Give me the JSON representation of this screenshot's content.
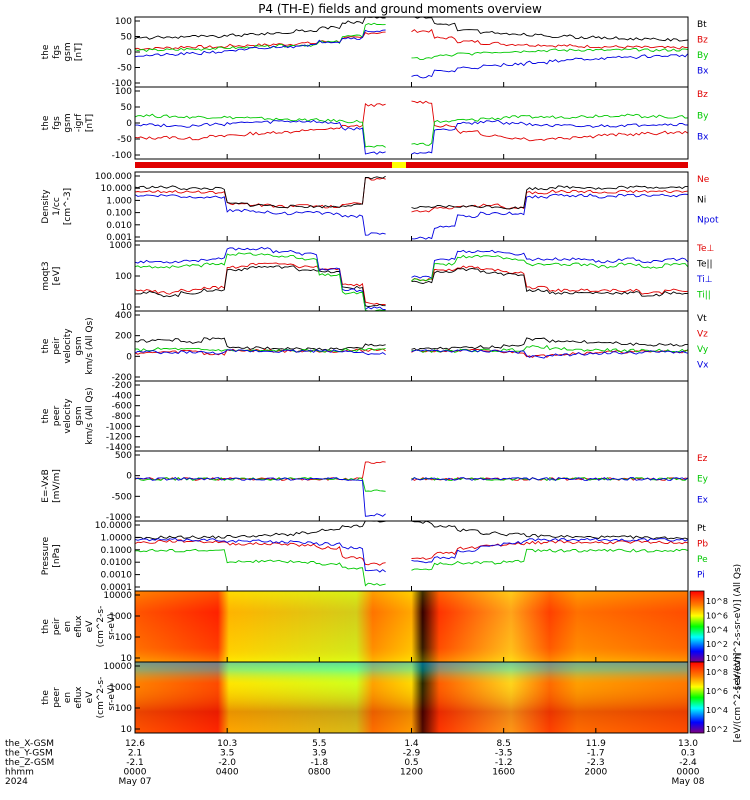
{
  "title": "P4 (TH-E) fields and ground moments overview",
  "colors": {
    "black": "#000000",
    "red": "#e00000",
    "green": "#00c800",
    "blue": "#0000e0",
    "yellow": "#ffff00",
    "frame": "#000000"
  },
  "chart_data": [
    {
      "type": "line",
      "id": "p1",
      "ylabel": [
        "the",
        "fgs",
        "gsm",
        "[nT]"
      ],
      "yticks": [
        "100",
        "50",
        "0",
        "-50",
        "-100"
      ],
      "ylim": [
        -100,
        100
      ],
      "series": [
        {
          "name": "Bt",
          "color": "#000000",
          "values": [
            40,
            42,
            45,
            44,
            48,
            52,
            55,
            60,
            70,
            85,
            100,
            0,
            100,
            80,
            62,
            55,
            50,
            48,
            45,
            42,
            40,
            38,
            36,
            35,
            34
          ]
        },
        {
          "name": "Bz",
          "color": "#e00000",
          "values": [
            10,
            12,
            15,
            14,
            18,
            20,
            22,
            25,
            30,
            40,
            55,
            0,
            60,
            40,
            30,
            25,
            22,
            20,
            18,
            16,
            15,
            14,
            13,
            12,
            12
          ]
        },
        {
          "name": "By",
          "color": "#00c800",
          "values": [
            5,
            6,
            8,
            10,
            12,
            15,
            18,
            20,
            28,
            45,
            80,
            0,
            -20,
            -10,
            -5,
            0,
            2,
            4,
            5,
            6,
            5,
            6,
            5,
            6,
            5
          ]
        },
        {
          "name": "Bx",
          "color": "#0000e0",
          "values": [
            -10,
            -8,
            -5,
            0,
            5,
            10,
            15,
            20,
            30,
            40,
            60,
            0,
            -70,
            -55,
            -45,
            -40,
            -35,
            -30,
            -25,
            -20,
            -18,
            -15,
            -12,
            -10,
            -8
          ]
        }
      ]
    },
    {
      "type": "line",
      "id": "p2",
      "ylabel": [
        "the",
        "fgs",
        "gsm",
        "-igrf",
        "[nT]"
      ],
      "yticks": [
        "100",
        "50",
        "0",
        "-50",
        "-100"
      ],
      "ylim": [
        -120,
        120
      ],
      "series": [
        {
          "name": "Bz",
          "color": "#e00000",
          "values": [
            -50,
            -48,
            -52,
            -45,
            -40,
            -35,
            -30,
            -25,
            -20,
            -10,
            60,
            0,
            70,
            -10,
            -30,
            -40,
            -50,
            -55,
            -50,
            -45,
            -40,
            -38,
            -35,
            -32,
            -30
          ]
        },
        {
          "name": "By",
          "color": "#00c800",
          "values": [
            25,
            22,
            20,
            20,
            18,
            15,
            12,
            10,
            8,
            5,
            -80,
            0,
            -70,
            5,
            10,
            15,
            20,
            20,
            20,
            22,
            25,
            25,
            22,
            20,
            20
          ]
        },
        {
          "name": "Bx",
          "color": "#0000e0",
          "values": [
            -5,
            -8,
            -10,
            -5,
            0,
            2,
            5,
            5,
            0,
            -20,
            -100,
            0,
            -100,
            -20,
            0,
            5,
            0,
            -5,
            -10,
            -12,
            -10,
            -8,
            -5,
            -5,
            -5
          ]
        }
      ]
    },
    {
      "type": "line",
      "id": "p3",
      "ylabel": [
        "Density",
        "1/cc",
        "[cm^-3]"
      ],
      "yticks": [
        "100.000",
        "10.000",
        "1.000",
        "0.100",
        "0.010",
        "0.001"
      ],
      "ylim": [
        -3,
        2
      ],
      "log": true,
      "series": [
        {
          "name": "Ne",
          "color": "#e00000",
          "values": [
            0.6,
            0.6,
            0.55,
            0.5,
            -0.3,
            -0.4,
            -0.5,
            -0.4,
            -0.5,
            -0.3,
            1.5,
            0,
            -0.8,
            -0.6,
            -0.5,
            -0.4,
            -0.6,
            0.5,
            0.6,
            0.6,
            0.5,
            0.6,
            0.6,
            0.6,
            0.6
          ]
        },
        {
          "name": "Ni",
          "color": "#000000",
          "values": [
            0.9,
            0.9,
            0.8,
            0.8,
            -0.3,
            -0.4,
            -0.5,
            -0.5,
            -0.5,
            -0.4,
            1.6,
            0,
            -0.6,
            -0.5,
            -0.5,
            -0.5,
            -0.6,
            0.8,
            0.9,
            0.9,
            0.8,
            0.9,
            0.9,
            0.9,
            0.9
          ]
        },
        {
          "name": "Npot",
          "color": "#0000e0",
          "values": [
            0.3,
            0.3,
            0.2,
            0.2,
            -0.8,
            -0.9,
            -1.0,
            -0.9,
            -1.0,
            -1.2,
            -2.5,
            0,
            -2.8,
            -2.0,
            -1.2,
            -1.0,
            -1.0,
            0.2,
            0.3,
            0.3,
            0.2,
            0.3,
            0.3,
            0.3,
            0.3
          ]
        }
      ]
    },
    {
      "type": "line",
      "id": "p4",
      "ylabel": [
        "moqt3",
        "[eV]"
      ],
      "yticks": [
        "1000",
        "100",
        "10"
      ],
      "ylim": [
        1,
        3.7
      ],
      "log": true,
      "series": [
        {
          "name": "Te⊥",
          "color": "#e00000",
          "values": [
            1.8,
            1.7,
            1.8,
            1.9,
            2.7,
            2.8,
            2.8,
            2.7,
            2.6,
            2.0,
            1.3,
            0,
            2.2,
            2.6,
            2.7,
            2.6,
            2.5,
            1.9,
            1.8,
            1.8,
            1.8,
            1.8,
            1.7,
            1.8,
            1.8
          ]
        },
        {
          "name": "Te||",
          "color": "#000000",
          "values": [
            1.7,
            1.6,
            1.7,
            1.8,
            2.6,
            2.7,
            2.7,
            2.6,
            2.5,
            1.9,
            1.2,
            0,
            2.1,
            2.5,
            2.6,
            2.5,
            2.4,
            1.8,
            1.7,
            1.7,
            1.7,
            1.7,
            1.6,
            1.7,
            1.7
          ]
        },
        {
          "name": "Ti⊥",
          "color": "#0000e0",
          "values": [
            2.9,
            2.9,
            2.95,
            3.0,
            3.4,
            3.4,
            3.3,
            3.2,
            2.6,
            1.8,
            1.1,
            0,
            2.3,
            3.0,
            3.3,
            3.3,
            3.2,
            3.0,
            3.0,
            3.0,
            2.9,
            3.0,
            2.9,
            3.0,
            2.9
          ]
        },
        {
          "name": "Ti||",
          "color": "#00c800",
          "values": [
            2.7,
            2.7,
            2.75,
            2.8,
            3.2,
            3.2,
            3.1,
            3.0,
            2.4,
            1.7,
            1.0,
            0,
            2.2,
            2.8,
            3.1,
            3.1,
            3.0,
            2.8,
            2.8,
            2.8,
            2.7,
            2.8,
            2.7,
            2.8,
            2.7
          ]
        }
      ]
    },
    {
      "type": "line",
      "id": "p5",
      "ylabel": [
        "the",
        "peir",
        "velocity",
        "gsm",
        "km/s (All Qs)"
      ],
      "yticks": [
        "400",
        "200",
        "0",
        "-200"
      ],
      "ylim": [
        -300,
        400
      ],
      "series": [
        {
          "name": "Vt",
          "color": "#000000",
          "values": [
            100,
            110,
            90,
            120,
            40,
            30,
            25,
            20,
            20,
            25,
            60,
            0,
            20,
            25,
            30,
            40,
            60,
            120,
            100,
            90,
            80,
            70,
            60,
            60,
            60
          ]
        },
        {
          "name": "Vz",
          "color": "#e00000",
          "values": [
            -20,
            -10,
            0,
            -30,
            5,
            5,
            0,
            0,
            0,
            5,
            10,
            0,
            0,
            0,
            5,
            0,
            -10,
            -50,
            -30,
            -20,
            -10,
            -10,
            -5,
            -5,
            -5
          ]
        },
        {
          "name": "Vy",
          "color": "#00c800",
          "values": [
            10,
            20,
            15,
            10,
            5,
            0,
            5,
            0,
            0,
            10,
            20,
            0,
            0,
            0,
            5,
            5,
            10,
            40,
            20,
            10,
            10,
            5,
            5,
            5,
            5
          ]
        },
        {
          "name": "Vx",
          "color": "#0000e0",
          "values": [
            -10,
            -20,
            -10,
            -20,
            0,
            0,
            0,
            0,
            0,
            -5,
            -30,
            0,
            0,
            0,
            0,
            0,
            -10,
            -60,
            -40,
            -30,
            -20,
            -20,
            -10,
            -10,
            -10
          ]
        }
      ]
    },
    {
      "type": "line",
      "id": "p6",
      "ylabel": [
        "the",
        "peer",
        "velocity",
        "gsm",
        "km/s (All Qs)"
      ],
      "yticks": [
        "-200",
        "-400",
        "-600",
        "-800",
        "-1000",
        "-1200",
        "-1400"
      ],
      "ylim": [
        -1500,
        0
      ],
      "series": [
        {
          "name": "Vt",
          "color": "#000000",
          "values": []
        },
        {
          "name": "Vz",
          "color": "#e00000",
          "values": []
        },
        {
          "name": "Vy",
          "color": "#00c800",
          "values": []
        },
        {
          "name": "Vx",
          "color": "#0000e0",
          "values": []
        }
      ]
    },
    {
      "type": "line",
      "id": "p7",
      "ylabel": [
        "E=-VxB",
        "[mV/m]"
      ],
      "yticks": [
        "500",
        "0",
        "-500",
        "-1000"
      ],
      "ylim": [
        -1050,
        700
      ],
      "series": [
        {
          "name": "Ez",
          "color": "#e00000",
          "values": [
            0,
            0,
            0,
            0,
            0,
            0,
            0,
            0,
            0,
            0,
            400,
            0,
            0,
            0,
            0,
            0,
            0,
            0,
            0,
            0,
            0,
            0,
            0,
            0,
            0
          ]
        },
        {
          "name": "Ey",
          "color": "#00c800",
          "values": [
            0,
            0,
            0,
            0,
            0,
            0,
            0,
            0,
            0,
            0,
            -300,
            0,
            0,
            0,
            0,
            0,
            0,
            0,
            0,
            0,
            0,
            0,
            0,
            0,
            0
          ]
        },
        {
          "name": "Ex",
          "color": "#0000e0",
          "values": [
            0,
            0,
            0,
            0,
            0,
            0,
            0,
            0,
            0,
            0,
            -900,
            0,
            0,
            0,
            0,
            0,
            0,
            0,
            0,
            0,
            0,
            0,
            0,
            0,
            0
          ]
        }
      ]
    },
    {
      "type": "line",
      "id": "p8",
      "ylabel": [
        "Pressure",
        "[nPa]"
      ],
      "yticks": [
        "10.0000",
        "1.0000",
        "0.1000",
        "0.0100",
        "0.0010",
        "0.0001"
      ],
      "ylim": [
        -4,
        1.2
      ],
      "log": true,
      "series": [
        {
          "name": "Pt",
          "color": "#000000",
          "values": [
            -0.1,
            0.0,
            0.0,
            0.0,
            0.05,
            0.1,
            0.2,
            0.3,
            0.5,
            0.8,
            1.2,
            0,
            1.1,
            0.8,
            0.5,
            0.3,
            0.2,
            0.1,
            0.05,
            0.0,
            0.0,
            0.0,
            -0.05,
            -0.05,
            -0.1
          ]
        },
        {
          "name": "Pb",
          "color": "#e00000",
          "values": [
            -0.4,
            -0.3,
            -0.3,
            -0.35,
            -0.5,
            -0.5,
            -0.5,
            -0.6,
            -0.8,
            -1.5,
            -2.0,
            0,
            -1.6,
            -1.2,
            -0.8,
            -0.6,
            -0.5,
            -0.4,
            -0.35,
            -0.4,
            -0.4,
            -0.35,
            -0.4,
            -0.4,
            -0.4
          ]
        },
        {
          "name": "Pe",
          "color": "#00c800",
          "values": [
            -1.0,
            -1.0,
            -1.0,
            -1.0,
            -1.8,
            -1.8,
            -1.8,
            -1.9,
            -2.0,
            -2.3,
            -3.5,
            0,
            -2.4,
            -2.0,
            -1.9,
            -1.9,
            -1.8,
            -1.0,
            -1.0,
            -1.0,
            -1.0,
            -1.0,
            -1.0,
            -1.0,
            -1.0
          ]
        },
        {
          "name": "Pi",
          "color": "#0000e0",
          "values": [
            -0.2,
            -0.2,
            -0.2,
            -0.2,
            -0.3,
            -0.3,
            -0.35,
            -0.4,
            -0.5,
            -0.8,
            -2.5,
            0,
            -1.8,
            -1.5,
            -1.0,
            -0.6,
            -0.4,
            -0.2,
            -0.2,
            -0.2,
            -0.2,
            -0.2,
            -0.2,
            -0.2,
            -0.2
          ]
        }
      ]
    },
    {
      "type": "heatmap",
      "id": "p9",
      "ylabel": [
        "the",
        "peir",
        "en",
        "eflux",
        "eV",
        "(cm^2-s-",
        "sr-eV)"
      ],
      "yticks": [
        "10000",
        "1000",
        "100",
        "10"
      ],
      "colorbar_ticks": [
        "10^8",
        "10^6",
        "10^4",
        "10^2",
        "10^0"
      ],
      "colorbar_label": "[eV/(cm^2-s-sr-eV)] (All Qs)"
    },
    {
      "type": "heatmap",
      "id": "p10",
      "ylabel": [
        "the",
        "peer",
        "en",
        "eflux",
        "eV",
        "(cm^2-s-",
        "sr-eV)"
      ],
      "yticks": [
        "10000",
        "1000",
        "100",
        "10"
      ],
      "colorbar_ticks": [
        "10^8",
        "10^6",
        "10^4",
        "10^2"
      ],
      "colorbar_label": "[eV/(cm^2-s-sr-eV)]"
    }
  ],
  "xaxis": {
    "row_labels": [
      "the_X-GSM",
      "the_Y-GSM",
      "the_Z-GSM",
      "hhmm",
      "2024"
    ],
    "columns": [
      {
        "values": [
          "12.6",
          "2.1",
          "-2.1",
          "0000",
          "May 07"
        ]
      },
      {
        "values": [
          "10.3",
          "3.5",
          "-2.0",
          "0400",
          ""
        ]
      },
      {
        "values": [
          "5.5",
          "3.9",
          "-1.8",
          "0800",
          ""
        ]
      },
      {
        "values": [
          "1.4",
          "-2.9",
          "0.5",
          "1200",
          ""
        ]
      },
      {
        "values": [
          "8.5",
          "-3.5",
          "-1.2",
          "1600",
          ""
        ]
      },
      {
        "values": [
          "11.9",
          "-1.7",
          "-2.3",
          "2000",
          ""
        ]
      },
      {
        "values": [
          "13.0",
          "0.3",
          "-2.4",
          "0000",
          "May 08"
        ]
      }
    ]
  }
}
